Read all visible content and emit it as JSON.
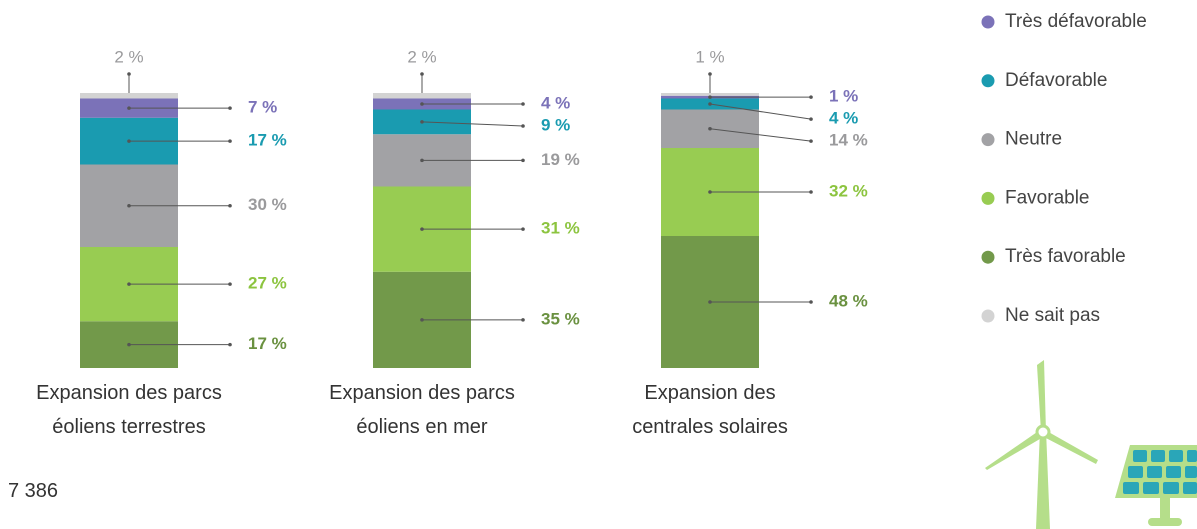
{
  "chart_data": {
    "type": "stacked_bar",
    "categories": [
      "Expansion des parcs éoliens terrestres",
      "Expansion des parcs éoliens en mer",
      "Expansion des centrales solaires"
    ],
    "series": [
      {
        "name": "Très défavorable",
        "color": "#7b72b8",
        "label_color": "#7b72b8",
        "values": [
          7,
          4,
          1
        ],
        "value_labels": [
          "7 %",
          "4 %",
          "1 %"
        ]
      },
      {
        "name": "Défavorable",
        "color": "#1a9bb0",
        "label_color": "#1a9bb0",
        "values": [
          17,
          9,
          4
        ],
        "value_labels": [
          "17 %",
          "9 %",
          "4 %"
        ]
      },
      {
        "name": "Neutre",
        "color": "#a2a2a5",
        "label_color": "#9a9a9c",
        "values": [
          30,
          19,
          14
        ],
        "value_labels": [
          "30 %",
          "19 %",
          "14 %"
        ]
      },
      {
        "name": "Favorable",
        "color": "#98cc52",
        "label_color": "#8cc43f",
        "values": [
          27,
          31,
          32
        ],
        "value_labels": [
          "27 %",
          "31 %",
          "32 %"
        ]
      },
      {
        "name": "Très favorable",
        "color": "#72994a",
        "label_color": "#6a9140",
        "values": [
          17,
          35,
          48
        ],
        "value_labels": [
          "17 %",
          "35 %",
          "48 %"
        ]
      },
      {
        "name": "Ne sait pas",
        "color": "#d3d3d3",
        "label_color": "#9a9a9c",
        "values": [
          2,
          2,
          1
        ],
        "value_labels": [
          "2 %",
          "2 %",
          "1 %"
        ]
      }
    ],
    "ylim": [
      0,
      100
    ],
    "note": "7 386"
  }
}
